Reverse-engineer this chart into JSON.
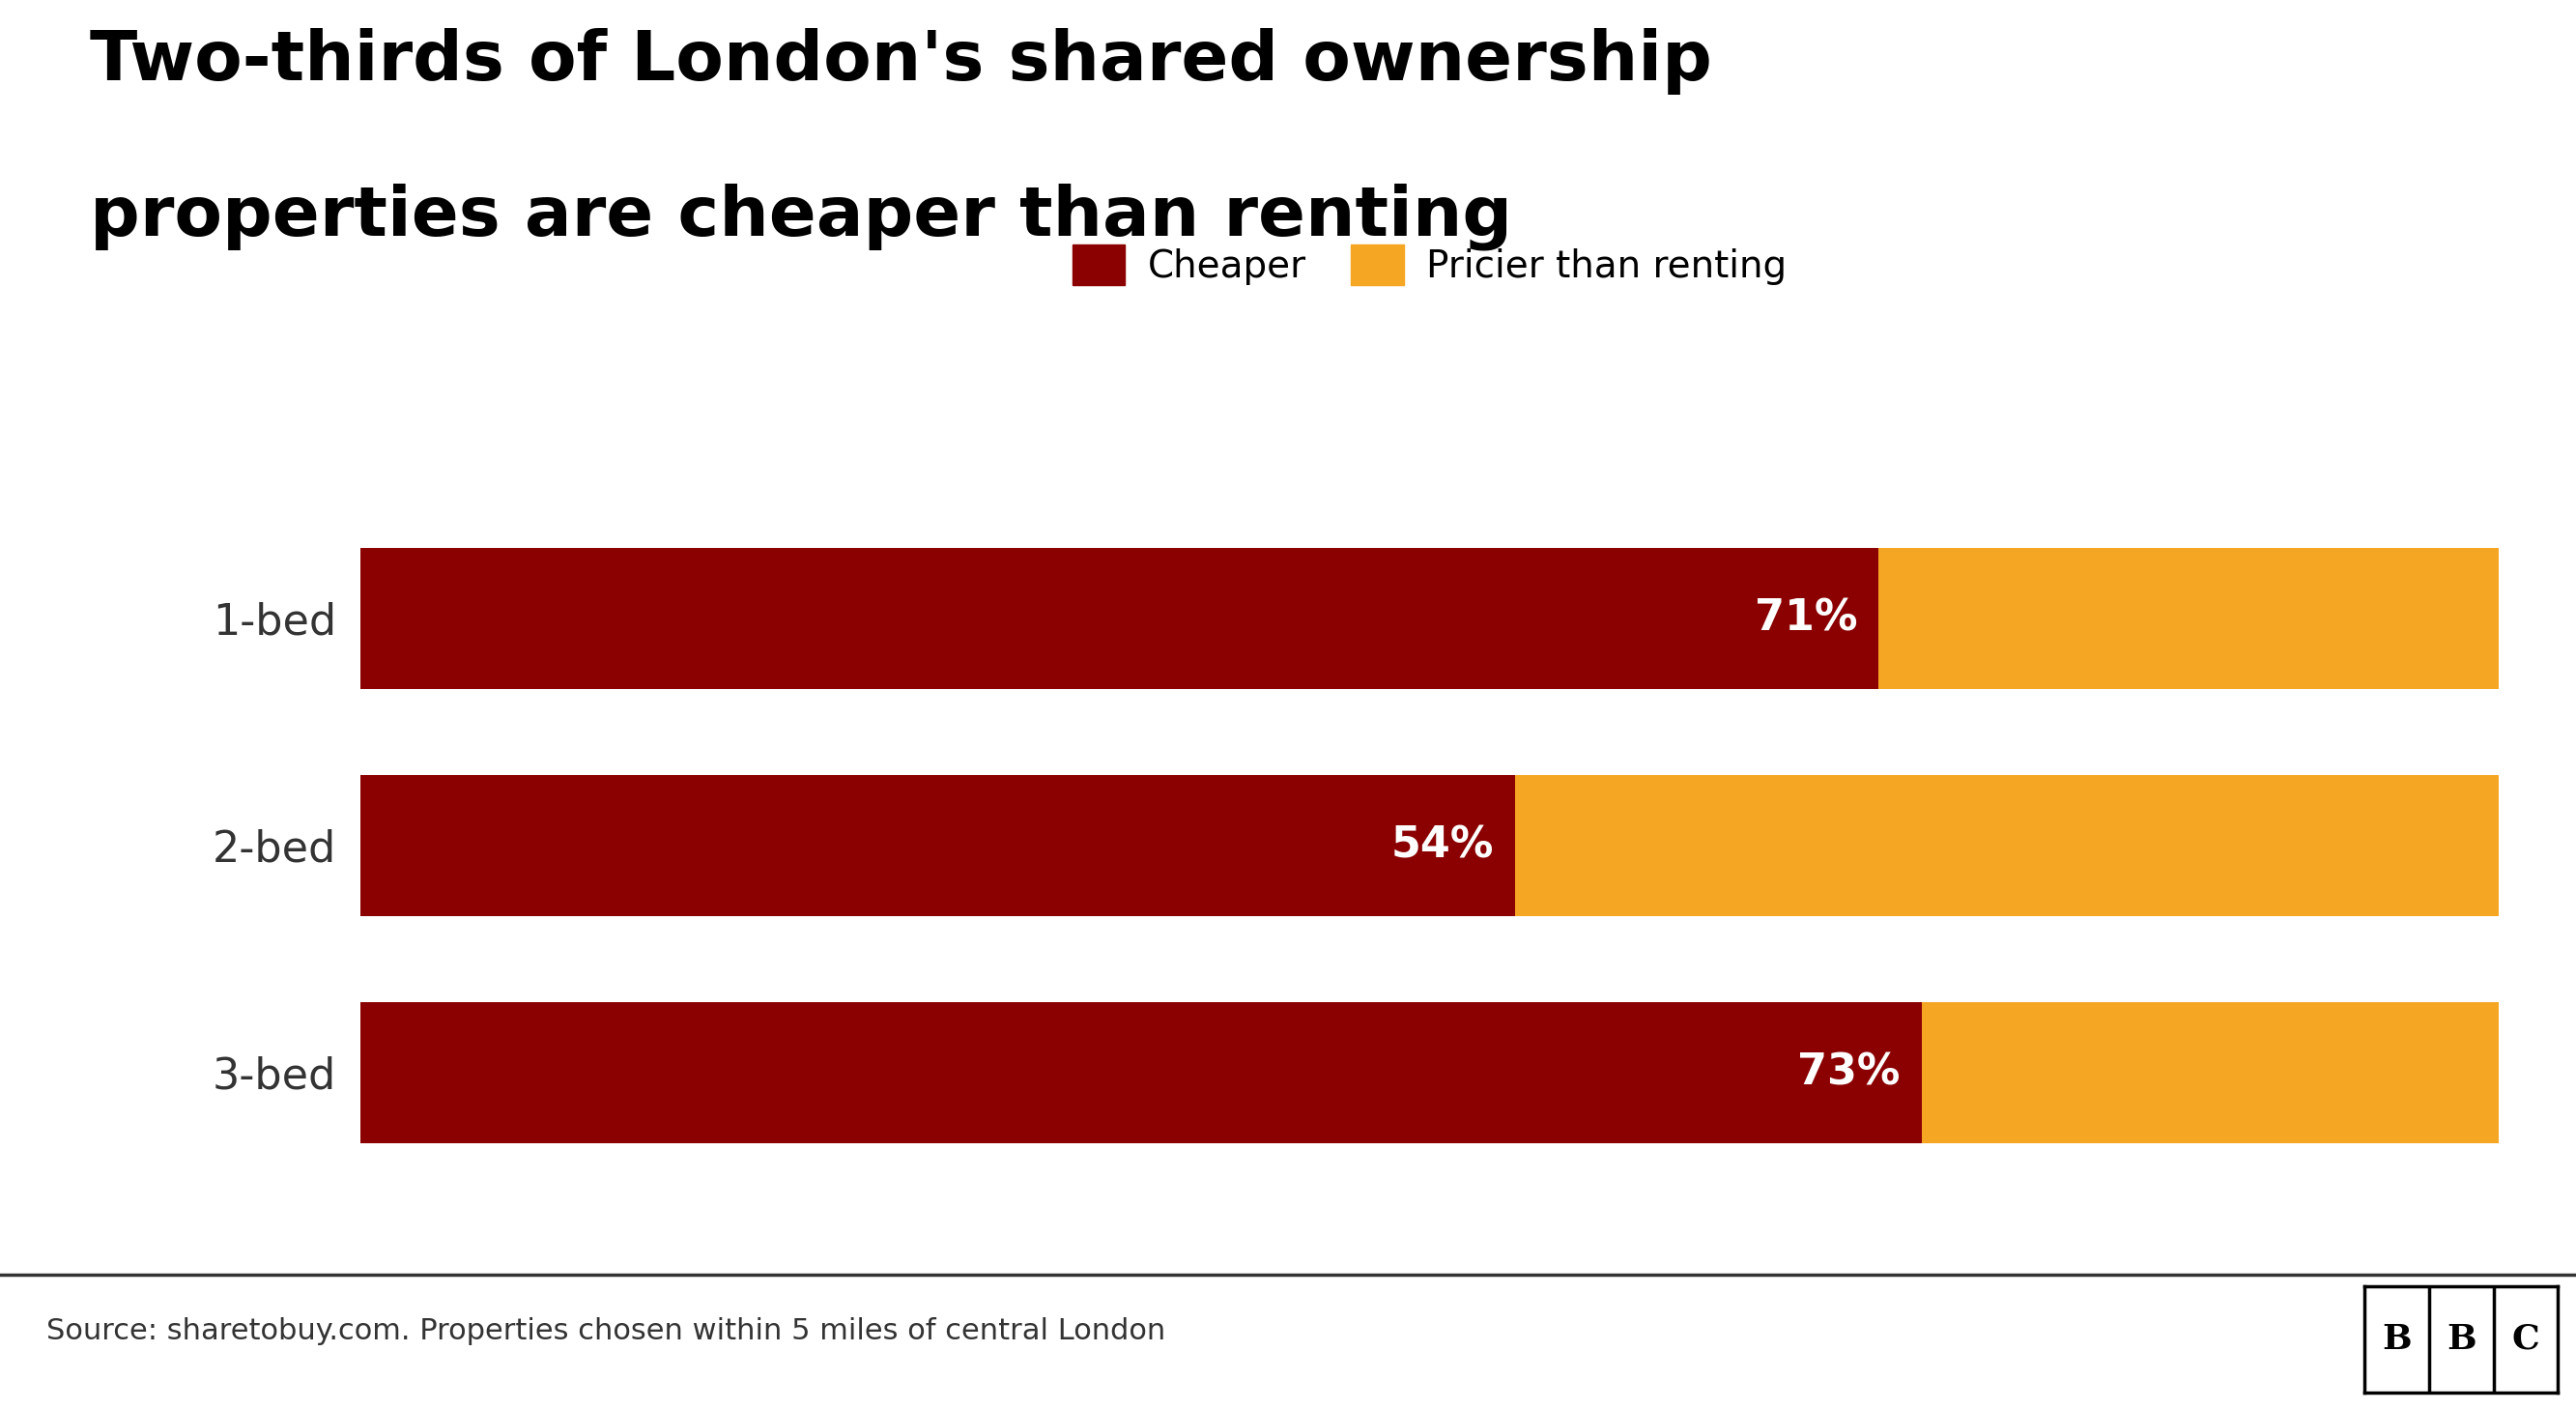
{
  "title_line1": "Two-thirds of London's shared ownership",
  "title_line2": "properties are cheaper than renting",
  "categories": [
    "1-bed",
    "2-bed",
    "3-bed"
  ],
  "cheaper_pct": [
    71,
    54,
    73
  ],
  "pricier_pct": [
    29,
    46,
    27
  ],
  "cheaper_color": "#8B0000",
  "pricier_color": "#F5A623",
  "legend_labels": [
    "Cheaper",
    "Pricier than renting"
  ],
  "bar_label_color": "white",
  "bar_label_fontsize": 32,
  "title_fontsize": 52,
  "legend_fontsize": 28,
  "ytick_fontsize": 32,
  "source_text": "Source: sharetobuy.com. Properties chosen within 5 miles of central London",
  "source_fontsize": 22,
  "background_color": "#ffffff",
  "bar_height": 0.62,
  "xlim": [
    0,
    100
  ],
  "bbc_text": "BBC"
}
